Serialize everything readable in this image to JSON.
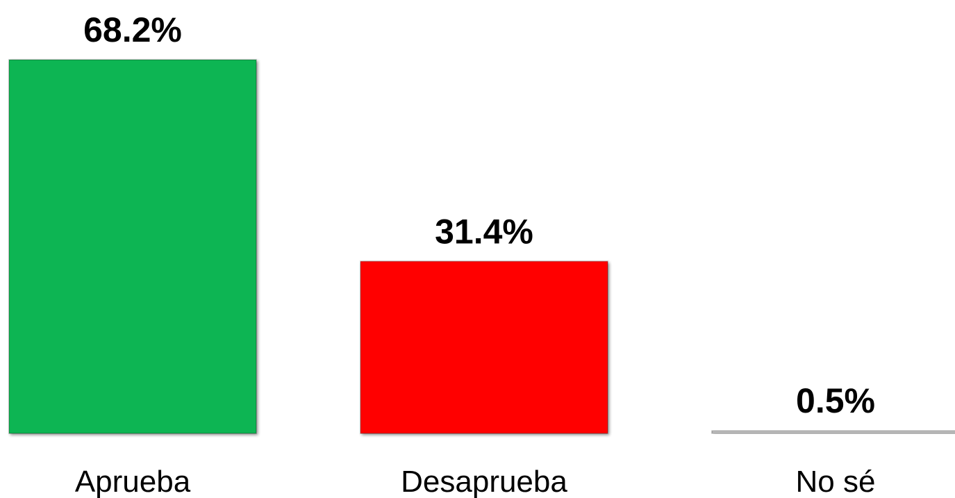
{
  "chart_data": {
    "type": "bar",
    "categories": [
      "Aprueba",
      "Desaprueba",
      "No sé"
    ],
    "values": [
      68.2,
      31.4,
      0.5
    ],
    "value_labels": [
      "68.2%",
      "31.4%",
      "0.5%"
    ],
    "colors": [
      "#0bb552",
      "#ff0000",
      "#c0c0c0"
    ]
  }
}
